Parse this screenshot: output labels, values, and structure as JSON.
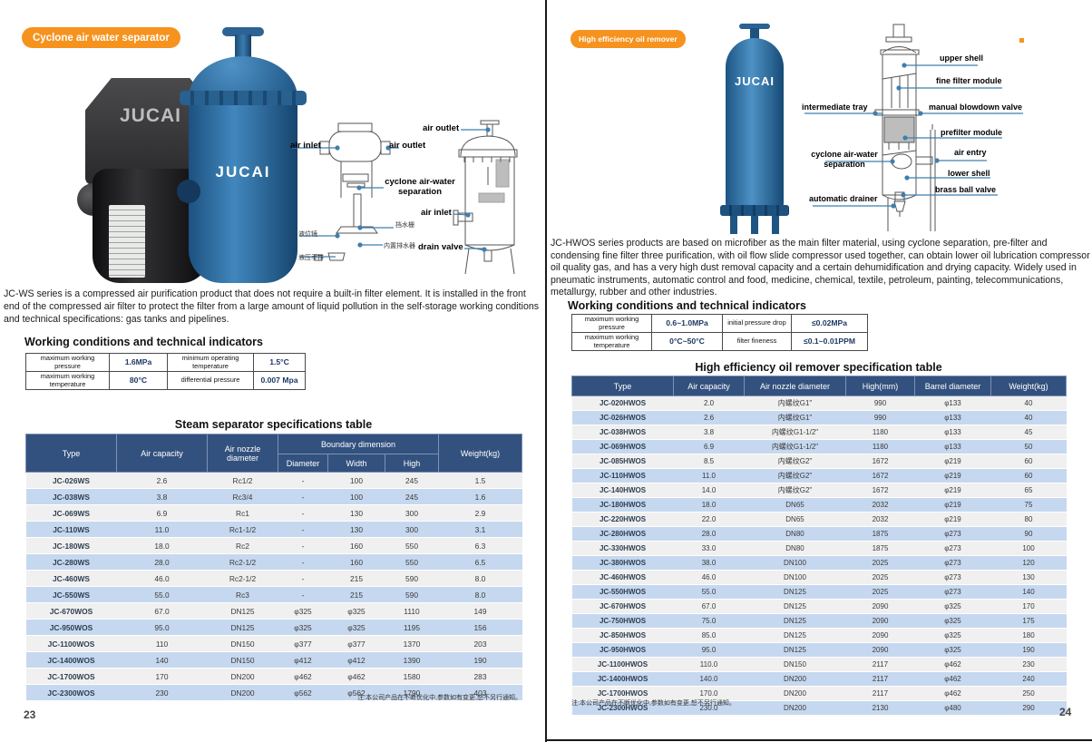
{
  "brand": "JUCAI",
  "colors": {
    "accent_orange": "#F6921E",
    "table_header_navy": "#33517E",
    "row_blue": "#C6D8EF",
    "row_gray": "#F0F0F0",
    "leader_blue": "#3F7FAE"
  },
  "page_left": {
    "page_number": "23",
    "badge": "Cyclone air water separator",
    "description": "JC-WS series is a compressed air purification product that does not require a built-in filter element. It is installed in the front end of the compressed air filter to protect the filter from a large amount of liquid pollution in the self-storage working conditions and technical specifications: gas tanks and pipelines.",
    "working_heading": "Working conditions and technical indicators",
    "working_rows": [
      [
        "maximum working pressure",
        "1.6MPa",
        "minimum operating temperature",
        "1.5°C"
      ],
      [
        "maximum working temperature",
        "80°C",
        "differential pressure",
        "0.007 Mpa"
      ]
    ],
    "spec_title": "Steam separator specifications table",
    "spec_headers": {
      "type": "Type",
      "air_capacity": "Air capacity",
      "nozzle": "Air nozzle diameter",
      "boundary": "Boundary dimension",
      "diameter": "Diameter",
      "width": "Width",
      "high": "High",
      "weight": "Weight(kg)"
    },
    "spec_rows": [
      [
        "JC-026WS",
        "2.6",
        "Rc1/2",
        "-",
        "100",
        "245",
        "1.5"
      ],
      [
        "JC-038WS",
        "3.8",
        "Rc3/4",
        "-",
        "100",
        "245",
        "1.6"
      ],
      [
        "JC-069WS",
        "6.9",
        "Rc1",
        "-",
        "130",
        "300",
        "2.9"
      ],
      [
        "JC-110WS",
        "11.0",
        "Rc1-1/2",
        "-",
        "130",
        "300",
        "3.1"
      ],
      [
        "JC-180WS",
        "18.0",
        "Rc2",
        "-",
        "160",
        "550",
        "6.3"
      ],
      [
        "JC-280WS",
        "28.0",
        "Rc2-1/2",
        "-",
        "160",
        "550",
        "6.5"
      ],
      [
        "JC-460WS",
        "46.0",
        "Rc2-1/2",
        "-",
        "215",
        "590",
        "8.0"
      ],
      [
        "JC-550WS",
        "55.0",
        "Rc3",
        "-",
        "215",
        "590",
        "8.0"
      ],
      [
        "JC-670WOS",
        "67.0",
        "DN125",
        "φ325",
        "φ325",
        "1110",
        "149"
      ],
      [
        "JC-950WOS",
        "95.0",
        "DN125",
        "φ325",
        "φ325",
        "1195",
        "156"
      ],
      [
        "JC-1100WOS",
        "110",
        "DN150",
        "φ377",
        "φ377",
        "1370",
        "203"
      ],
      [
        "JC-1400WOS",
        "140",
        "DN150",
        "φ412",
        "φ412",
        "1390",
        "190"
      ],
      [
        "JC-1700WOS",
        "170",
        "DN200",
        "φ462",
        "φ462",
        "1580",
        "283"
      ],
      [
        "JC-2300WOS",
        "230",
        "DN200",
        "φ562",
        "φ562",
        "1790",
        "403"
      ]
    ],
    "note": "注:本公司产品在不断优化中,参数如有变更,恕不另行通知。",
    "labels": {
      "air_inlet": "air inlet",
      "air_outlet": "air outlet",
      "cyclone": "cyclone air-water separation",
      "water_baffle": "挡水栅",
      "level_glass": "液位镜",
      "built_in_drainer": "内置排水器",
      "hydraulic_manual_drain": "液压手排",
      "vessel_air_outlet": "air outlet",
      "vessel_air_inlet": "air inlet",
      "drain_valve": "drain valve"
    }
  },
  "page_right": {
    "page_number": "24",
    "badge": "High efficiency oil remover",
    "description": "JC-HWOS series products are based on microfiber as the main filter material, using cyclone separation, pre-filter and condensing fine filter three purification, with oil flow slide compressor used together, can obtain lower oil lubrication compressor oil quality gas, and has a very high dust removal capacity and a certain dehumidification and drying capacity. Widely used in pneumatic instruments, automatic control and food, medicine, chemical, textile, petroleum, painting, telecommunications, metallurgy, rubber and other industries.",
    "working_heading": "Working conditions and technical indicators",
    "working_rows": [
      [
        "maximum working pressure",
        "0.6~1.0MPa",
        "initial pressure drop",
        "≤0.02MPa"
      ],
      [
        "maximum working temperature",
        "0°C~50°C",
        "filter fineness",
        "≤0.1~0.01PPM"
      ]
    ],
    "spec_title": "High efficiency oil remover specification table",
    "spec_headers": [
      "Type",
      "Air capacity",
      "Air nozzle diameter",
      "High(mm)",
      "Barrel diameter",
      "Weight(kg)"
    ],
    "spec_rows": [
      [
        "JC-020HWOS",
        "2.0",
        "内螺纹G1\"",
        "990",
        "φ133",
        "40"
      ],
      [
        "JC-026HWOS",
        "2.6",
        "内螺纹G1\"",
        "990",
        "φ133",
        "40"
      ],
      [
        "JC-038HWOS",
        "3.8",
        "内螺纹G1-1/2\"",
        "1180",
        "φ133",
        "45"
      ],
      [
        "JC-069HWOS",
        "6.9",
        "内螺纹G1-1/2\"",
        "1180",
        "φ133",
        "50"
      ],
      [
        "JC-085HWOS",
        "8.5",
        "内螺纹G2\"",
        "1672",
        "φ219",
        "60"
      ],
      [
        "JC-110HWOS",
        "11.0",
        "内螺纹G2\"",
        "1672",
        "φ219",
        "60"
      ],
      [
        "JC-140HWOS",
        "14.0",
        "内螺纹G2\"",
        "1672",
        "φ219",
        "65"
      ],
      [
        "JC-180HWOS",
        "18.0",
        "DN65",
        "2032",
        "φ219",
        "75"
      ],
      [
        "JC-220HWOS",
        "22.0",
        "DN65",
        "2032",
        "φ219",
        "80"
      ],
      [
        "JC-280HWOS",
        "28.0",
        "DN80",
        "1875",
        "φ273",
        "90"
      ],
      [
        "JC-330HWOS",
        "33.0",
        "DN80",
        "1875",
        "φ273",
        "100"
      ],
      [
        "JC-380HWOS",
        "38.0",
        "DN100",
        "2025",
        "φ273",
        "120"
      ],
      [
        "JC-460HWOS",
        "46.0",
        "DN100",
        "2025",
        "φ273",
        "130"
      ],
      [
        "JC-550HWOS",
        "55.0",
        "DN125",
        "2025",
        "φ273",
        "140"
      ],
      [
        "JC-670HWOS",
        "67.0",
        "DN125",
        "2090",
        "φ325",
        "170"
      ],
      [
        "JC-750HWOS",
        "75.0",
        "DN125",
        "2090",
        "φ325",
        "175"
      ],
      [
        "JC-850HWOS",
        "85.0",
        "DN125",
        "2090",
        "φ325",
        "180"
      ],
      [
        "JC-950HWOS",
        "95.0",
        "DN125",
        "2090",
        "φ325",
        "190"
      ],
      [
        "JC-1100HWOS",
        "110.0",
        "DN150",
        "2117",
        "φ462",
        "230"
      ],
      [
        "JC-1400HWOS",
        "140.0",
        "DN200",
        "2117",
        "φ462",
        "240"
      ],
      [
        "JC-1700HWOS",
        "170.0",
        "DN200",
        "2117",
        "φ462",
        "250"
      ],
      [
        "JC-2300HWOS",
        "230.0",
        "DN200",
        "2130",
        "φ480",
        "290"
      ]
    ],
    "note": "注:本公司产品在不断优化中,参数如有变更,恕不另行通知。",
    "labels": {
      "upper_shell": "upper shell",
      "fine_filter_module": "fine filter module",
      "intermediate_tray": "intermediate tray",
      "manual_blowdown_valve": "manual blowdown valve",
      "prefilter_module": "prefilter module",
      "cyclone": "cyclone air-water separation",
      "air_entry": "air entry",
      "lower_shell": "lower shell",
      "brass_ball_valve": "brass ball valve",
      "automatic_drainer": "automatic drainer"
    }
  }
}
